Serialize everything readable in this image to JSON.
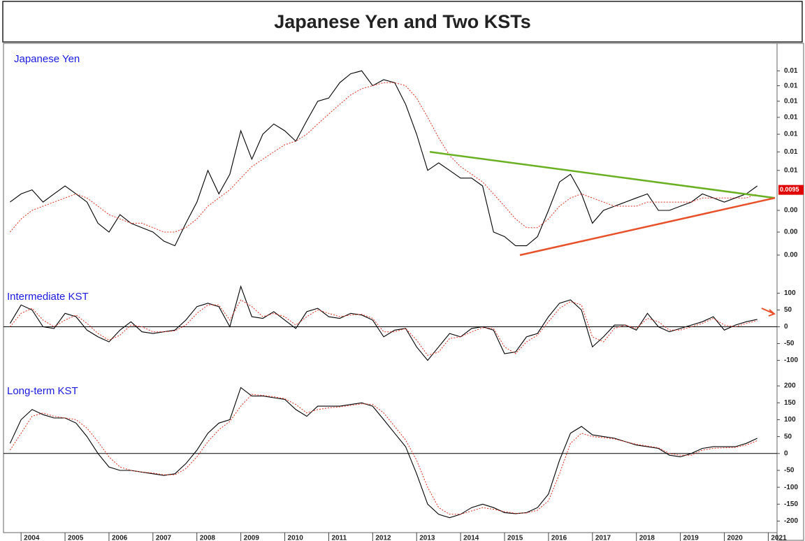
{
  "title": "Japanese Yen and Two KSTs",
  "chart_data": [
    {
      "type": "line",
      "title": "Japanese Yen",
      "log_scale": true,
      "xlim": [
        2003.6,
        2021.2
      ],
      "x": [
        2003.75,
        2004,
        2004.25,
        2004.5,
        2004.75,
        2005,
        2005.25,
        2005.5,
        2005.75,
        2006,
        2006.25,
        2006.5,
        2006.75,
        2007,
        2007.25,
        2007.5,
        2007.75,
        2008,
        2008.25,
        2008.5,
        2008.75,
        2009,
        2009.25,
        2009.5,
        2009.75,
        2010,
        2010.25,
        2010.5,
        2010.75,
        2011,
        2011.25,
        2011.5,
        2011.75,
        2012,
        2012.25,
        2012.5,
        2012.75,
        2013,
        2013.25,
        2013.5,
        2013.75,
        2014,
        2014.25,
        2014.5,
        2014.75,
        2015,
        2015.25,
        2015.5,
        2015.75,
        2016,
        2016.25,
        2016.5,
        2016.75,
        2017,
        2017.25,
        2017.5,
        2017.75,
        2018,
        2018.25,
        2018.5,
        2018.75,
        2019,
        2019.25,
        2019.5,
        2019.75,
        2020,
        2020.25,
        2020.5,
        2020.75
      ],
      "ylim": [
        0.0075,
        0.0139
      ],
      "yticks": [
        {
          "value": 0.013,
          "label": "0.01"
        },
        {
          "value": 0.0125,
          "label": "0.01"
        },
        {
          "value": 0.012,
          "label": "0.01"
        },
        {
          "value": 0.0115,
          "label": "0.01"
        },
        {
          "value": 0.011,
          "label": "0.01"
        },
        {
          "value": 0.0105,
          "label": "0.01"
        },
        {
          "value": 0.01,
          "label": "0.01"
        },
        {
          "value": 0.009,
          "label": "0.00"
        },
        {
          "value": 0.0085,
          "label": "0.00"
        },
        {
          "value": 0.008,
          "label": "0.00"
        }
      ],
      "last_value": 0.0095,
      "series": [
        {
          "color": "#000000",
          "style": "solid",
          "values": [
            0.0092,
            0.0094,
            0.0095,
            0.0092,
            0.0094,
            0.0096,
            0.0094,
            0.0092,
            0.0087,
            0.0085,
            0.0089,
            0.0087,
            0.0086,
            0.0085,
            0.0083,
            0.0082,
            0.0087,
            0.0092,
            0.01,
            0.0094,
            0.0099,
            0.0111,
            0.0103,
            0.011,
            0.0113,
            0.0111,
            0.0108,
            0.0114,
            0.012,
            0.0121,
            0.0126,
            0.0129,
            0.013,
            0.0125,
            0.0127,
            0.0126,
            0.0119,
            0.011,
            0.01,
            0.0102,
            0.01,
            0.0098,
            0.0098,
            0.0096,
            0.0085,
            0.0084,
            0.0082,
            0.0082,
            0.0084,
            0.009,
            0.0097,
            0.0099,
            0.0094,
            0.0087,
            0.009,
            0.0091,
            0.0092,
            0.0093,
            0.0094,
            0.009,
            0.009,
            0.0091,
            0.0092,
            0.0094,
            0.0093,
            0.0092,
            0.0093,
            0.0094,
            0.0096
          ]
        },
        {
          "color": "#e03020",
          "style": "dotted",
          "values": [
            0.0085,
            0.0088,
            0.009,
            0.0091,
            0.0092,
            0.0093,
            0.0094,
            0.0093,
            0.0091,
            0.0089,
            0.0088,
            0.0087,
            0.0087,
            0.0086,
            0.0085,
            0.0085,
            0.0086,
            0.0088,
            0.0091,
            0.0093,
            0.0095,
            0.0098,
            0.0101,
            0.0103,
            0.0105,
            0.0107,
            0.0108,
            0.011,
            0.0113,
            0.0116,
            0.0119,
            0.0122,
            0.0124,
            0.0125,
            0.0126,
            0.0126,
            0.0125,
            0.0121,
            0.0115,
            0.0109,
            0.0104,
            0.0101,
            0.0099,
            0.0097,
            0.0094,
            0.0091,
            0.0088,
            0.0086,
            0.0086,
            0.0088,
            0.0091,
            0.0093,
            0.0094,
            0.0093,
            0.0092,
            0.0091,
            0.0091,
            0.0091,
            0.0092,
            0.0092,
            0.0092,
            0.0092,
            0.0092,
            0.0093,
            0.0093,
            0.0093,
            0.0093,
            0.0093,
            0.0094
          ]
        }
      ],
      "trendlines": [
        {
          "color": "#6ab023",
          "x": [
            2013.3,
            2021.15
          ],
          "values": [
            0.0105,
            0.0093
          ]
        },
        {
          "color": "#e8502a",
          "x": [
            2015.35,
            2021.15
          ],
          "values": [
            0.008,
            0.0093
          ]
        }
      ]
    },
    {
      "type": "line",
      "title": "Intermediate KST",
      "xlim": [
        2003.6,
        2021.2
      ],
      "x": [
        2003.75,
        2004,
        2004.25,
        2004.5,
        2004.75,
        2005,
        2005.25,
        2005.5,
        2005.75,
        2006,
        2006.25,
        2006.5,
        2006.75,
        2007,
        2007.25,
        2007.5,
        2007.75,
        2008,
        2008.25,
        2008.5,
        2008.75,
        2009,
        2009.25,
        2009.5,
        2009.75,
        2010,
        2010.25,
        2010.5,
        2010.75,
        2011,
        2011.25,
        2011.5,
        2011.75,
        2012,
        2012.25,
        2012.5,
        2012.75,
        2013,
        2013.25,
        2013.5,
        2013.75,
        2014,
        2014.25,
        2014.5,
        2014.75,
        2015,
        2015.25,
        2015.5,
        2015.75,
        2016,
        2016.25,
        2016.5,
        2016.75,
        2017,
        2017.25,
        2017.5,
        2017.75,
        2018,
        2018.25,
        2018.5,
        2018.75,
        2019,
        2019.25,
        2019.5,
        2019.75,
        2020,
        2020.25,
        2020.5,
        2020.75
      ],
      "ylim": [
        -130,
        130
      ],
      "yticks": [
        100,
        50,
        0,
        -50,
        -100
      ],
      "hlines": [
        0
      ],
      "series": [
        {
          "color": "#000000",
          "style": "solid",
          "values": [
            10,
            65,
            50,
            0,
            -5,
            40,
            30,
            -10,
            -30,
            -45,
            -10,
            15,
            -15,
            -20,
            -15,
            -10,
            20,
            60,
            70,
            60,
            0,
            120,
            30,
            25,
            45,
            20,
            -5,
            45,
            55,
            30,
            25,
            40,
            35,
            20,
            -30,
            -10,
            -5,
            -60,
            -100,
            -60,
            -20,
            -30,
            -5,
            0,
            -10,
            -80,
            -75,
            -30,
            -20,
            30,
            70,
            80,
            50,
            -60,
            -30,
            5,
            5,
            -10,
            40,
            0,
            -15,
            -5,
            5,
            15,
            30,
            -10,
            5,
            15,
            22
          ]
        },
        {
          "color": "#e03020",
          "style": "dotted",
          "values": [
            0,
            40,
            55,
            20,
            0,
            20,
            35,
            10,
            -20,
            -40,
            -25,
            5,
            0,
            -15,
            -15,
            -12,
            5,
            40,
            65,
            65,
            20,
            80,
            60,
            30,
            40,
            30,
            5,
            30,
            50,
            40,
            30,
            35,
            37,
            25,
            -15,
            -15,
            -5,
            -40,
            -85,
            -75,
            -35,
            -30,
            -15,
            -3,
            -5,
            -60,
            -80,
            -45,
            -25,
            15,
            55,
            75,
            65,
            -30,
            -45,
            -5,
            5,
            -5,
            25,
            15,
            -10,
            -10,
            0,
            10,
            25,
            5,
            0,
            10,
            18
          ]
        }
      ]
    },
    {
      "type": "line",
      "title": "Long-term KST",
      "xlim": [
        2003.6,
        2021.2
      ],
      "x": [
        2003.75,
        2004,
        2004.25,
        2004.5,
        2004.75,
        2005,
        2005.25,
        2005.5,
        2005.75,
        2006,
        2006.25,
        2006.5,
        2006.75,
        2007,
        2007.25,
        2007.5,
        2007.75,
        2008,
        2008.25,
        2008.5,
        2008.75,
        2009,
        2009.25,
        2009.5,
        2009.75,
        2010,
        2010.25,
        2010.5,
        2010.75,
        2011,
        2011.25,
        2011.5,
        2011.75,
        2012,
        2012.25,
        2012.5,
        2012.75,
        2013,
        2013.25,
        2013.5,
        2013.75,
        2014,
        2014.25,
        2014.5,
        2014.75,
        2015,
        2015.25,
        2015.5,
        2015.75,
        2016,
        2016.25,
        2016.5,
        2016.75,
        2017,
        2017.25,
        2017.5,
        2017.75,
        2018,
        2018.25,
        2018.5,
        2018.75,
        2019,
        2019.25,
        2019.5,
        2019.75,
        2020,
        2020.25,
        2020.5,
        2020.75
      ],
      "xticks": [
        2004,
        2005,
        2006,
        2007,
        2008,
        2009,
        2010,
        2011,
        2012,
        2013,
        2014,
        2015,
        2016,
        2017,
        2018,
        2019,
        2020,
        2021
      ],
      "ylim": [
        -230,
        225
      ],
      "yticks": [
        200,
        150,
        100,
        50,
        0,
        -50,
        -100,
        -150,
        -200
      ],
      "hlines": [
        0
      ],
      "series": [
        {
          "color": "#000000",
          "style": "solid",
          "values": [
            30,
            100,
            130,
            115,
            105,
            105,
            90,
            50,
            0,
            -40,
            -50,
            -50,
            -55,
            -60,
            -65,
            -60,
            -30,
            10,
            60,
            90,
            100,
            195,
            170,
            170,
            165,
            160,
            130,
            110,
            140,
            140,
            140,
            145,
            150,
            140,
            100,
            60,
            20,
            -60,
            -150,
            -180,
            -190,
            -180,
            -160,
            -150,
            -160,
            -175,
            -178,
            -175,
            -160,
            -120,
            -20,
            60,
            80,
            55,
            50,
            45,
            35,
            25,
            20,
            15,
            -5,
            -10,
            0,
            15,
            20,
            20,
            20,
            30,
            45
          ]
        },
        {
          "color": "#e03020",
          "style": "dotted",
          "values": [
            10,
            60,
            110,
            120,
            110,
            105,
            100,
            75,
            35,
            -10,
            -40,
            -50,
            -55,
            -58,
            -63,
            -63,
            -45,
            -10,
            35,
            70,
            95,
            140,
            175,
            172,
            168,
            162,
            145,
            120,
            130,
            135,
            138,
            142,
            147,
            145,
            120,
            80,
            40,
            -20,
            -100,
            -160,
            -180,
            -180,
            -170,
            -160,
            -165,
            -172,
            -177,
            -176,
            -168,
            -140,
            -60,
            30,
            60,
            50,
            47,
            43,
            35,
            27,
            22,
            17,
            0,
            -5,
            -5,
            10,
            15,
            17,
            18,
            25,
            38
          ]
        }
      ]
    }
  ]
}
